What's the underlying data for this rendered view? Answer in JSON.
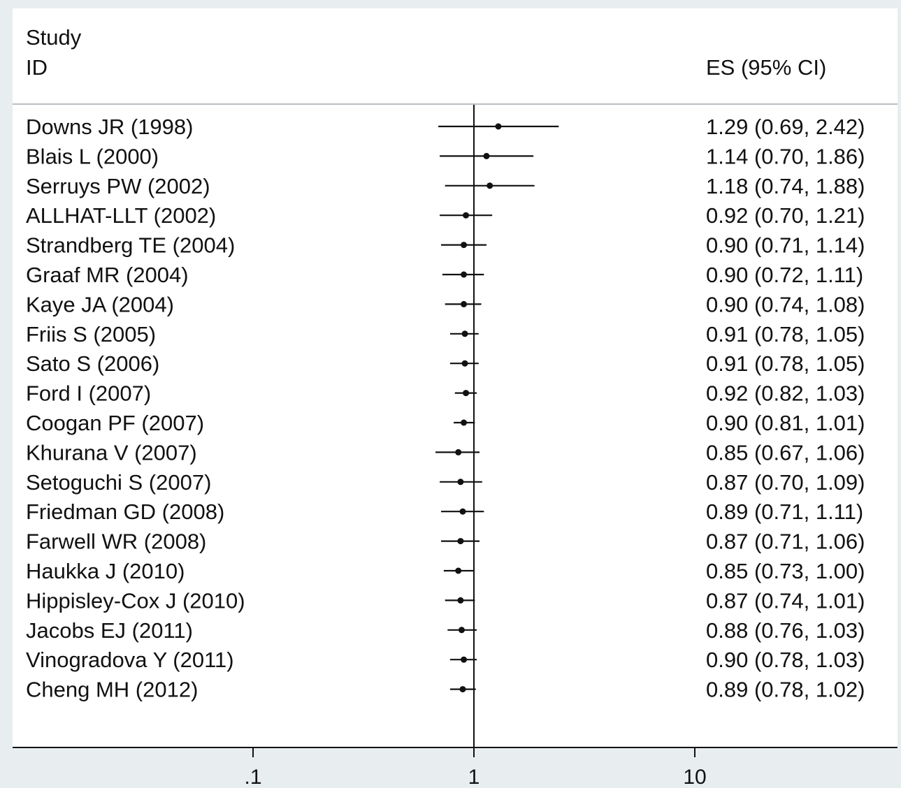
{
  "chart_data": {
    "type": "forest",
    "header": {
      "study_line1": "Study",
      "study_line2": "ID",
      "es_label": "ES (95% CI)"
    },
    "x_axis": {
      "scale": "log",
      "ticks": [
        0.1,
        1,
        10
      ],
      "tick_labels": [
        ".1",
        "1",
        "10"
      ],
      "xlim": [
        0.05,
        25
      ],
      "reference_line": 1
    },
    "studies": [
      {
        "id": "Downs JR (1998)",
        "es": 1.29,
        "lo": 0.69,
        "hi": 2.42,
        "label": "1.29 (0.69, 2.42)"
      },
      {
        "id": "Blais L (2000)",
        "es": 1.14,
        "lo": 0.7,
        "hi": 1.86,
        "label": "1.14 (0.70, 1.86)"
      },
      {
        "id": "Serruys PW (2002)",
        "es": 1.18,
        "lo": 0.74,
        "hi": 1.88,
        "label": "1.18 (0.74, 1.88)"
      },
      {
        "id": "ALLHAT-LLT (2002)",
        "es": 0.92,
        "lo": 0.7,
        "hi": 1.21,
        "label": "0.92 (0.70, 1.21)"
      },
      {
        "id": "Strandberg TE (2004)",
        "es": 0.9,
        "lo": 0.71,
        "hi": 1.14,
        "label": "0.90 (0.71, 1.14)"
      },
      {
        "id": "Graaf MR (2004)",
        "es": 0.9,
        "lo": 0.72,
        "hi": 1.11,
        "label": "0.90 (0.72, 1.11)"
      },
      {
        "id": "Kaye JA (2004)",
        "es": 0.9,
        "lo": 0.74,
        "hi": 1.08,
        "label": "0.90 (0.74, 1.08)"
      },
      {
        "id": "Friis S (2005)",
        "es": 0.91,
        "lo": 0.78,
        "hi": 1.05,
        "label": "0.91 (0.78, 1.05)"
      },
      {
        "id": "Sato S (2006)",
        "es": 0.91,
        "lo": 0.78,
        "hi": 1.05,
        "label": "0.91 (0.78, 1.05)"
      },
      {
        "id": "Ford I (2007)",
        "es": 0.92,
        "lo": 0.82,
        "hi": 1.03,
        "label": "0.92 (0.82, 1.03)"
      },
      {
        "id": "Coogan PF (2007)",
        "es": 0.9,
        "lo": 0.81,
        "hi": 1.01,
        "label": "0.90 (0.81, 1.01)"
      },
      {
        "id": "Khurana V (2007)",
        "es": 0.85,
        "lo": 0.67,
        "hi": 1.06,
        "label": "0.85 (0.67, 1.06)"
      },
      {
        "id": "Setoguchi S (2007)",
        "es": 0.87,
        "lo": 0.7,
        "hi": 1.09,
        "label": "0.87 (0.70, 1.09)"
      },
      {
        "id": "Friedman GD (2008)",
        "es": 0.89,
        "lo": 0.71,
        "hi": 1.11,
        "label": "0.89 (0.71, 1.11)"
      },
      {
        "id": "Farwell WR (2008)",
        "es": 0.87,
        "lo": 0.71,
        "hi": 1.06,
        "label": "0.87 (0.71, 1.06)"
      },
      {
        "id": "Haukka J (2010)",
        "es": 0.85,
        "lo": 0.73,
        "hi": 1.0,
        "label": "0.85 (0.73, 1.00)"
      },
      {
        "id": "Hippisley-Cox J (2010)",
        "es": 0.87,
        "lo": 0.74,
        "hi": 1.01,
        "label": "0.87 (0.74, 1.01)"
      },
      {
        "id": "Jacobs EJ (2011)",
        "es": 0.88,
        "lo": 0.76,
        "hi": 1.03,
        "label": "0.88 (0.76, 1.03)"
      },
      {
        "id": "Vinogradova Y (2011)",
        "es": 0.9,
        "lo": 0.78,
        "hi": 1.03,
        "label": "0.90 (0.78, 1.03)"
      },
      {
        "id": "Cheng MH (2012)",
        "es": 0.89,
        "lo": 0.78,
        "hi": 1.02,
        "label": "0.89 (0.78, 1.02)"
      }
    ],
    "colors": {
      "background": "#e8edf0",
      "panel": "#ffffff",
      "ink": "#111111",
      "divider": "#b9bfc3"
    }
  }
}
